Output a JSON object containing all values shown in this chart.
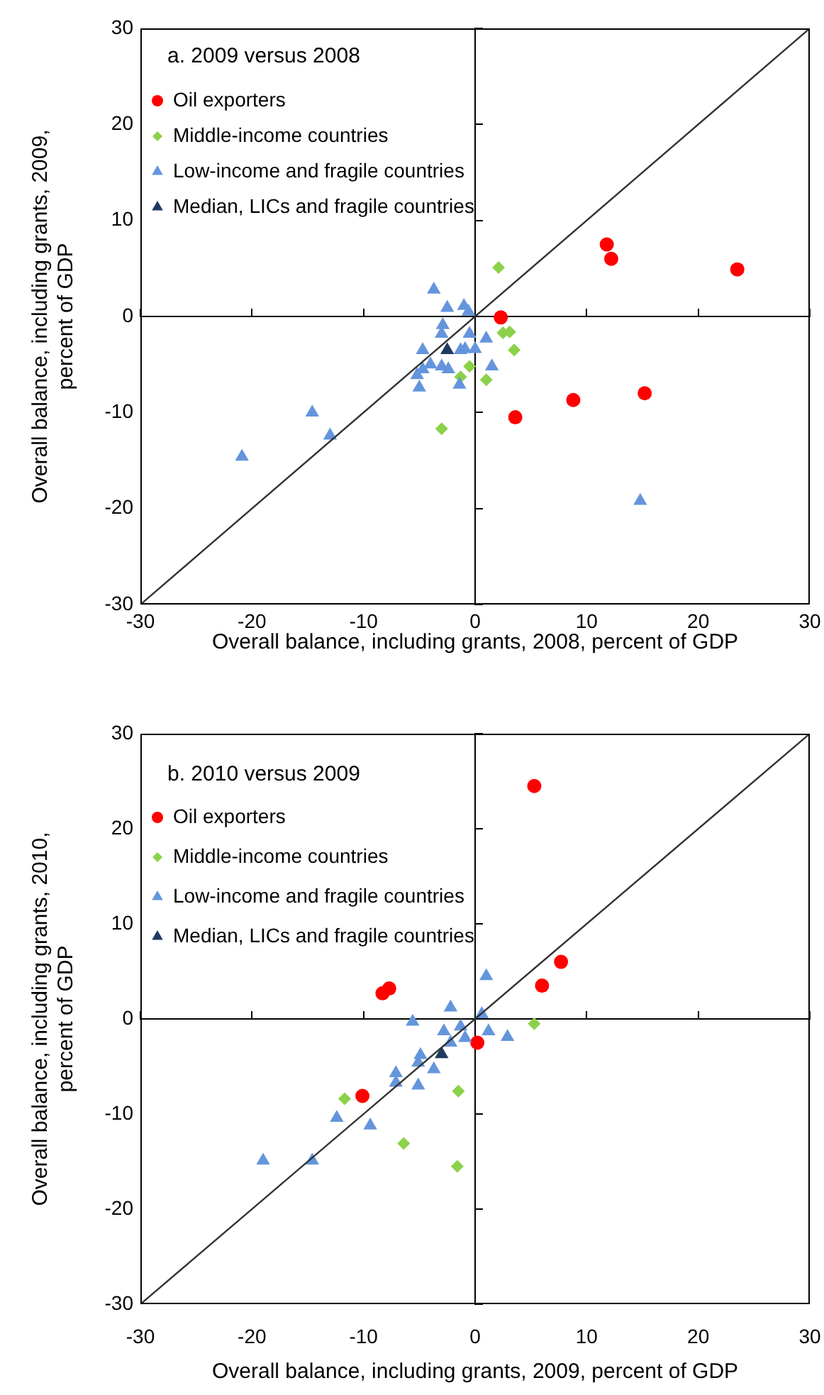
{
  "chart_data": [
    {
      "type": "scatter",
      "title": "a. 2009 versus 2008",
      "xlabel": "Overall balance, including grants, 2008, percent of GDP",
      "ylabel": "Overall balance, including grants, 2009,\npercent of GDP",
      "xlim": [
        -30,
        30
      ],
      "ylim": [
        -30,
        30
      ],
      "xticks": [
        -30,
        -20,
        -10,
        0,
        10,
        20,
        30
      ],
      "yticks": [
        -30,
        -20,
        -10,
        0,
        10,
        20,
        30
      ],
      "legend": "top left",
      "series": [
        {
          "name": "Oil exporters",
          "color": "#ff0000",
          "marker": "circle",
          "x": [
            11.8,
            12.2,
            23.5,
            2.3,
            3.6,
            8.8,
            15.2
          ],
          "values": [
            7.5,
            6.0,
            4.9,
            -0.1,
            -10.5,
            -8.7,
            -8.0
          ]
        },
        {
          "name": "Middle-income countries",
          "color": "#8cd14a",
          "marker": "diamond",
          "x": [
            2.1,
            2.5,
            3.1,
            3.5,
            -0.5,
            -1.3,
            1.0,
            -3.0
          ],
          "values": [
            5.1,
            -1.7,
            -1.6,
            -3.5,
            -5.2,
            -6.3,
            -6.6,
            -11.7
          ]
        },
        {
          "name": "Low-income and fragile countries",
          "color": "#6495dc",
          "marker": "triangle",
          "x": [
            -3.7,
            -2.5,
            -1.0,
            -0.6,
            -2.9,
            -3.0,
            -0.5,
            1.0,
            -4.7,
            -1.3,
            -0.9,
            0.0,
            -4.0,
            -4.7,
            -3.0,
            -2.4,
            -5.2,
            -5.0,
            -1.4,
            1.5,
            -14.6,
            -13.0,
            -20.9,
            14.8
          ],
          "values": [
            2.8,
            0.9,
            1.1,
            0.5,
            -0.9,
            -1.8,
            -1.8,
            -2.3,
            -3.5,
            -3.5,
            -3.4,
            -3.4,
            -5.0,
            -5.5,
            -5.2,
            -5.5,
            -6.1,
            -7.4,
            -7.1,
            -5.2,
            -10.0,
            -12.4,
            -14.6,
            -19.2
          ]
        },
        {
          "name": "Median, LICs and fragile countries",
          "color": "#1f3a60",
          "marker": "triangle",
          "x": [
            -2.5
          ],
          "values": [
            -3.5
          ]
        },
        {
          "type": "line",
          "color": "#333333",
          "marker": "none",
          "x": [
            -30,
            30
          ],
          "values": [
            -30,
            30
          ]
        }
      ]
    },
    {
      "type": "scatter",
      "title": "b. 2010 versus 2009",
      "xlabel": "Overall balance, including grants, 2009, percent of GDP",
      "ylabel": "Overall balance, including grants, 2010,\npercent of GDP",
      "xlim": [
        -30,
        30
      ],
      "ylim": [
        -30,
        30
      ],
      "xticks": [
        -30,
        -20,
        -10,
        0,
        10,
        20,
        30
      ],
      "yticks": [
        -30,
        -20,
        -10,
        0,
        10,
        20,
        30
      ],
      "legend": "top left",
      "series": [
        {
          "name": "Oil exporters",
          "color": "#ff0000",
          "marker": "circle",
          "x": [
            5.3,
            7.7,
            6.0,
            -8.3,
            -7.7,
            0.2,
            -10.1
          ],
          "values": [
            24.5,
            6.0,
            3.5,
            2.7,
            3.2,
            -2.5,
            -8.1
          ]
        },
        {
          "name": "Middle-income countries",
          "color": "#8cd14a",
          "marker": "diamond",
          "x": [
            5.3,
            -11.7,
            -6.4,
            -1.5,
            -1.6
          ],
          "values": [
            -0.5,
            -8.4,
            -13.1,
            -7.6,
            -15.5
          ]
        },
        {
          "name": "Low-income and fragile countries",
          "color": "#6495dc",
          "marker": "triangle",
          "x": [
            1.0,
            -2.2,
            -5.6,
            0.6,
            1.2,
            2.9,
            -1.3,
            -2.8,
            -0.9,
            -2.2,
            -4.9,
            -3.7,
            -5.1,
            -7.1,
            -7.1,
            -5.1,
            -12.4,
            -9.4,
            -19.0,
            -14.6
          ],
          "values": [
            4.5,
            1.2,
            -0.3,
            0.5,
            -1.3,
            -1.9,
            -0.8,
            -1.3,
            -2.0,
            -2.5,
            -3.8,
            -5.3,
            -4.6,
            -5.7,
            -6.7,
            -7.0,
            -10.4,
            -11.2,
            -14.9,
            -14.9
          ]
        },
        {
          "name": "Median, LICs and fragile countries",
          "color": "#1f3a60",
          "marker": "triangle",
          "x": [
            -3.0
          ],
          "values": [
            -3.7
          ]
        },
        {
          "type": "line",
          "color": "#333333",
          "marker": "none",
          "x": [
            -30,
            30
          ],
          "values": [
            -30,
            30
          ]
        }
      ]
    }
  ]
}
